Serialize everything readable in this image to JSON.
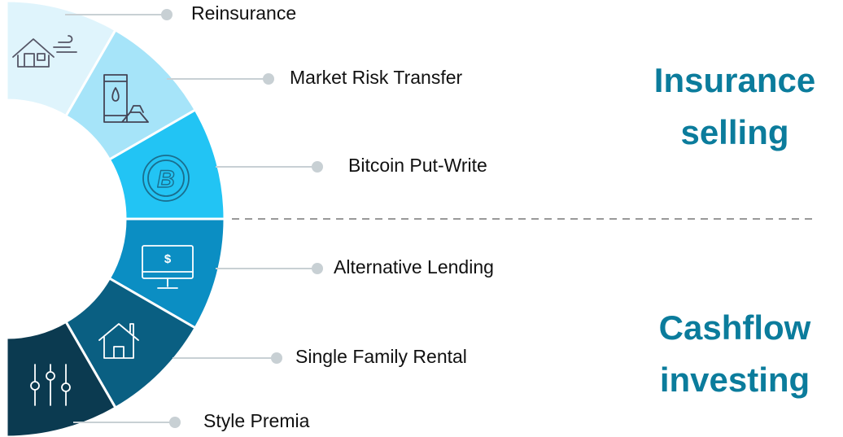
{
  "segments": [
    {
      "label": "Reinsurance"
    },
    {
      "label": "Market Risk Transfer"
    },
    {
      "label": "Bitcoin Put-Write"
    },
    {
      "label": "Alternative Lending"
    },
    {
      "label": "Single Family Rental"
    },
    {
      "label": "Style Premia"
    }
  ],
  "groups": [
    {
      "title": [
        "Insurance",
        "selling"
      ]
    },
    {
      "title": [
        "Cashflow",
        "investing"
      ]
    }
  ]
}
